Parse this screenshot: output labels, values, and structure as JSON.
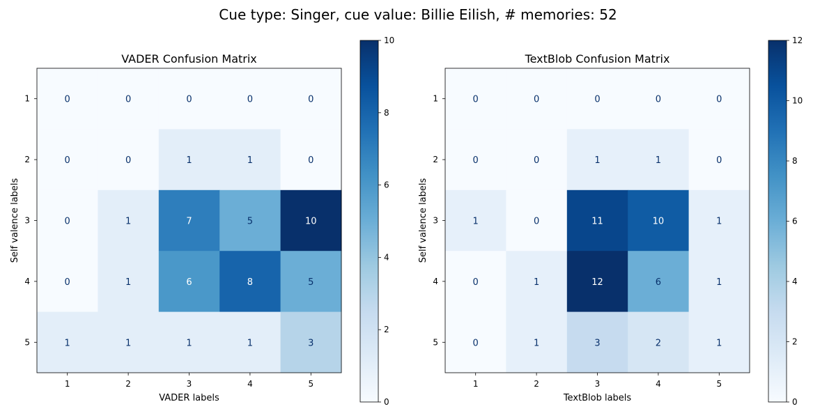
{
  "figure": {
    "suptitle": "Cue type: Singer, cue value: Billie Eilish, # memories: 52"
  },
  "chart_data": [
    {
      "type": "heatmap",
      "title": "VADER Confusion Matrix",
      "xlabel": "VADER labels",
      "ylabel": "Self valence labels",
      "x_categories": [
        "1",
        "2",
        "3",
        "4",
        "5"
      ],
      "y_categories": [
        "1",
        "2",
        "3",
        "4",
        "5"
      ],
      "matrix": [
        [
          0,
          0,
          0,
          0,
          0
        ],
        [
          0,
          0,
          1,
          1,
          0
        ],
        [
          0,
          1,
          7,
          5,
          10
        ],
        [
          0,
          1,
          6,
          8,
          5
        ],
        [
          1,
          1,
          1,
          1,
          3
        ]
      ],
      "colormap": "Blues",
      "colorbar": {
        "min": 0,
        "max": 10,
        "ticks": [
          0,
          2,
          4,
          6,
          8,
          10
        ]
      }
    },
    {
      "type": "heatmap",
      "title": "TextBlob Confusion Matrix",
      "xlabel": "TextBlob labels",
      "ylabel": "Self valence labels",
      "x_categories": [
        "1",
        "2",
        "3",
        "4",
        "5"
      ],
      "y_categories": [
        "1",
        "2",
        "3",
        "4",
        "5"
      ],
      "matrix": [
        [
          0,
          0,
          0,
          0,
          0
        ],
        [
          0,
          0,
          1,
          1,
          0
        ],
        [
          1,
          0,
          11,
          10,
          1
        ],
        [
          0,
          1,
          12,
          6,
          1
        ],
        [
          0,
          1,
          3,
          2,
          1
        ]
      ],
      "colormap": "Blues",
      "colorbar": {
        "min": 0,
        "max": 12,
        "ticks": [
          0,
          2,
          4,
          6,
          8,
          10,
          12
        ]
      }
    }
  ]
}
